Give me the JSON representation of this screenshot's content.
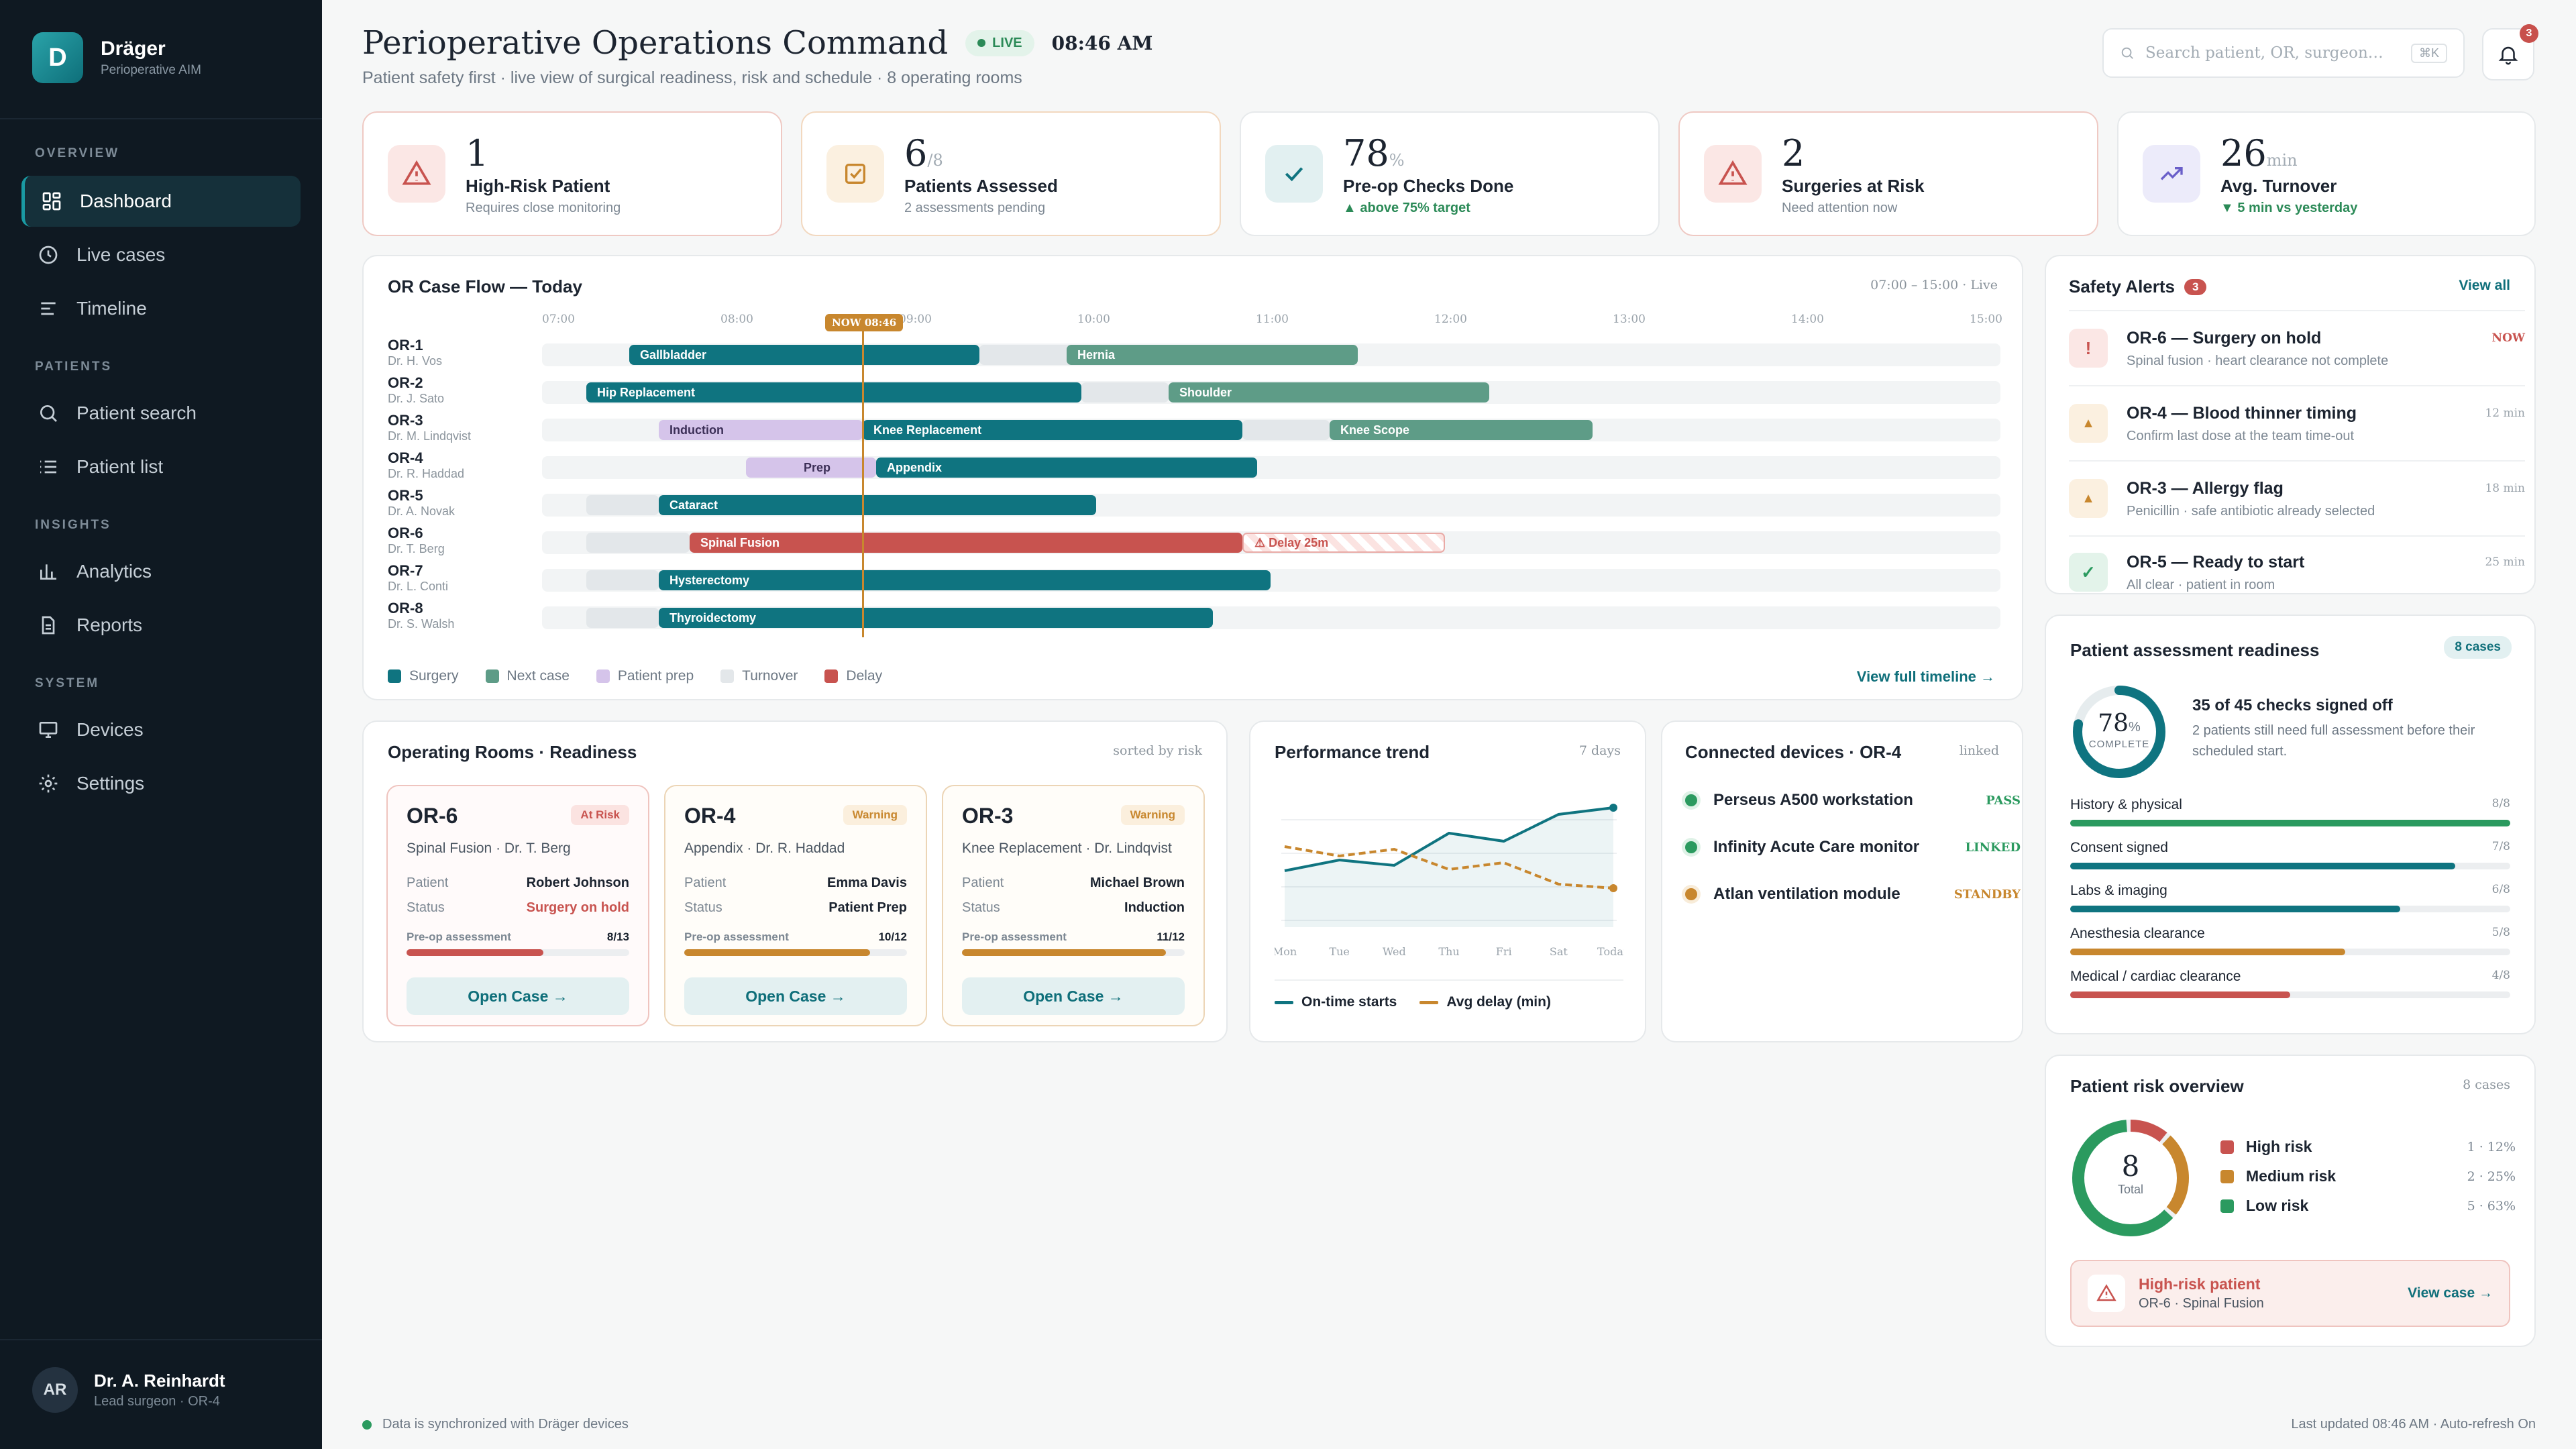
{
  "brand": {
    "letter": "D",
    "name": "Dräger",
    "sub": "Perioperative AIM"
  },
  "nav": {
    "overview": "OVERVIEW",
    "patients": "PATIENTS",
    "insights": "INSIGHTS",
    "system": "SYSTEM",
    "items": [
      {
        "label": "Dashboard",
        "icon": "grid-icon"
      },
      {
        "label": "Live cases",
        "icon": "clock-icon"
      },
      {
        "label": "Timeline",
        "icon": "timeline-icon"
      },
      {
        "label": "Patient search",
        "icon": "search-icon"
      },
      {
        "label": "Patient list",
        "icon": "list-icon"
      },
      {
        "label": "Analytics",
        "icon": "bar-chart-icon"
      },
      {
        "label": "Reports",
        "icon": "document-icon"
      },
      {
        "label": "Devices",
        "icon": "monitor-icon"
      },
      {
        "label": "Settings",
        "icon": "gear-icon"
      }
    ]
  },
  "user": {
    "initials": "AR",
    "name": "Dr. A. Reinhardt",
    "role": "Lead surgeon · OR-4"
  },
  "header": {
    "title": "Perioperative Operations Command",
    "live": "LIVE",
    "time": "08:46 AM",
    "subtitle": "Patient safety first · live view of surgical readiness, risk and schedule · 8 operating rooms",
    "search_placeholder": "Search patient, OR, surgeon…",
    "search_kbd": "⌘K",
    "notif_count": "3"
  },
  "kpis": [
    {
      "value": "1",
      "unit": "",
      "label": "High-Risk Patient",
      "sub": "Requires close monitoring"
    },
    {
      "value": "6",
      "unit": "/8",
      "label": "Patients Assessed",
      "sub": "2 assessments pending"
    },
    {
      "value": "78",
      "unit": "%",
      "label": "Pre-op Checks Done",
      "sub": "▲ above 75% target"
    },
    {
      "value": "2",
      "unit": "",
      "label": "Surgeries at Risk",
      "sub": "Need attention now"
    },
    {
      "value": "26",
      "unit": "min",
      "label": "Avg. Turnover",
      "sub": "▼ 5 min vs yesterday"
    }
  ],
  "flow": {
    "title": "OR Case Flow — Today",
    "meta": "07:00 – 15:00 · Live",
    "now": "NOW 08:46",
    "hours": [
      "07:00",
      "08:00",
      "09:00",
      "10:00",
      "11:00",
      "12:00",
      "13:00",
      "14:00",
      "15:00"
    ],
    "rows": [
      {
        "id": "OR-1",
        "doc": "Dr. H. Vos"
      },
      {
        "id": "OR-2",
        "doc": "Dr. J. Sato"
      },
      {
        "id": "OR-3",
        "doc": "Dr. M. Lindqvist"
      },
      {
        "id": "OR-4",
        "doc": "Dr. R. Haddad"
      },
      {
        "id": "OR-5",
        "doc": "Dr. A. Novak"
      },
      {
        "id": "OR-6",
        "doc": "Dr. T. Berg"
      },
      {
        "id": "OR-7",
        "doc": "Dr. L. Conti"
      },
      {
        "id": "OR-8",
        "doc": "Dr. S. Walsh"
      }
    ],
    "bars": [
      "Gallbladder",
      "Hernia",
      "Hip Replacement",
      "Shoulder",
      "Induction",
      "Knee Replacement",
      "Knee Scope",
      "Prep",
      "Appendix",
      "Cataract",
      "Spinal Fusion",
      "⚠ Delay 25m",
      "Hysterectomy",
      "Thyroidectomy"
    ],
    "legend": [
      "Surgery",
      "Next case",
      "Patient prep",
      "Turnover",
      "Delay"
    ],
    "view_all": "View full timeline →"
  },
  "alerts": {
    "title": "Safety Alerts",
    "count": "3",
    "view_all": "View all",
    "items": [
      {
        "icon": "!",
        "title": "OR-6 — Surgery on hold",
        "sub": "Spinal fusion · heart clearance not complete",
        "time": "NOW"
      },
      {
        "icon": "▲",
        "title": "OR-4 — Blood thinner timing",
        "sub": "Confirm last dose at the team time-out",
        "time": "12 min"
      },
      {
        "icon": "▲",
        "title": "OR-3 — Allergy flag",
        "sub": "Penicillin · safe antibiotic already selected",
        "time": "18 min"
      },
      {
        "icon": "✓",
        "title": "OR-5 — Ready to start",
        "sub": "All clear · patient in room",
        "time": "25 min"
      }
    ]
  },
  "rooms": {
    "title": "Operating Rooms · Readiness",
    "meta": "sorted by risk",
    "labels": {
      "patient": "Patient",
      "status": "Status",
      "pre": "Pre-op assessment",
      "open": "Open Case →"
    },
    "items": [
      {
        "id": "OR-6",
        "tag": "At Risk",
        "proc": "Spinal Fusion · Dr. T. Berg",
        "patient": "Robert Johnson",
        "status": "Surgery on hold",
        "pre": "8/13",
        "fraction": 0.615
      },
      {
        "id": "OR-4",
        "tag": "Warning",
        "proc": "Appendix · Dr. R. Haddad",
        "patient": "Emma Davis",
        "status": "Patient Prep",
        "pre": "10/12",
        "fraction": 0.833
      },
      {
        "id": "OR-3",
        "tag": "Warning",
        "proc": "Knee Replacement · Dr. Lindqvist",
        "patient": "Michael Brown",
        "status": "Induction",
        "pre": "11/12",
        "fraction": 0.917
      }
    ]
  },
  "trend": {
    "title": "Performance trend",
    "meta": "7 days",
    "days": [
      "Mon",
      "Tue",
      "Wed",
      "Thu",
      "Fri",
      "Sat",
      "Today"
    ],
    "legend": [
      "On-time starts",
      "Avg delay (min)"
    ],
    "ontime": [
      0.42,
      0.5,
      0.46,
      0.7,
      0.64,
      0.84,
      0.89
    ],
    "delay": [
      0.6,
      0.53,
      0.58,
      0.43,
      0.48,
      0.32,
      0.29
    ]
  },
  "devices": {
    "title": "Connected devices · OR-4",
    "meta": "linked",
    "items": [
      {
        "name": "Perseus A500 workstation",
        "status": "PASS"
      },
      {
        "name": "Infinity Acute Care monitor",
        "status": "LINKED"
      },
      {
        "name": "Atlan ventilation module",
        "status": "STANDBY"
      }
    ]
  },
  "readiness": {
    "title": "Patient assessment readiness",
    "badge": "8 cases",
    "pct": "78",
    "pct_unit": "%",
    "complete": "COMPLETE",
    "headline": "35 of 45 checks signed off",
    "detail": "2 patients still need full assessment before their scheduled start.",
    "items": [
      {
        "label": "History & physical",
        "value": "8/8",
        "fraction": 1.0
      },
      {
        "label": "Consent signed",
        "value": "7/8",
        "fraction": 0.875
      },
      {
        "label": "Labs & imaging",
        "value": "6/8",
        "fraction": 0.75
      },
      {
        "label": "Anesthesia clearance",
        "value": "5/8",
        "fraction": 0.625
      },
      {
        "label": "Medical / cardiac clearance",
        "value": "4/8",
        "fraction": 0.5
      }
    ]
  },
  "risk": {
    "title": "Patient risk overview",
    "meta": "8 cases",
    "total": "8",
    "total_label": "Total",
    "items": [
      {
        "label": "High risk",
        "value": "1 · 12%",
        "pct": 12
      },
      {
        "label": "Medium risk",
        "value": "2 · 25%",
        "pct": 25
      },
      {
        "label": "Low risk",
        "value": "5 · 63%",
        "pct": 63
      }
    ],
    "banner_title": "High-risk patient",
    "banner_sub": "OR-6 · Spinal Fusion",
    "banner_link": "View case →"
  },
  "footer": {
    "left": "Data is synchronized with Dräger devices",
    "right": "Last updated 08:46 AM · Auto-refresh On"
  },
  "colors": {
    "surgery": "#0f7480",
    "next": "#5e9c87",
    "prep": "#d5c4ea",
    "turnover": "#e3e7ea",
    "delay": "#c8534f",
    "warning": "#c8872e",
    "good": "#2b9a5f"
  }
}
